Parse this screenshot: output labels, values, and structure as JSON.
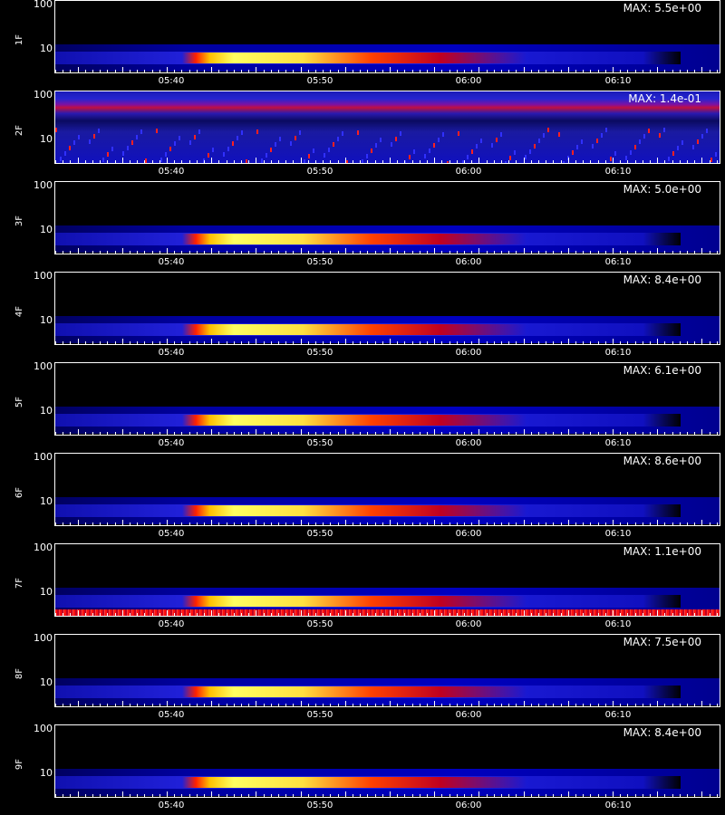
{
  "chart_data": {
    "type": "heatmap",
    "x_ticks": [
      "05:40",
      "05:50",
      "06:00",
      "06:10"
    ],
    "y_ticks": [
      "100",
      "10"
    ],
    "y_scale": "log",
    "panels": [
      {
        "ylabel": "1F",
        "max_label": "MAX: 5.5e+00",
        "kind": "burst"
      },
      {
        "ylabel": "2F",
        "max_label": "MAX: 1.4e-01",
        "kind": "noise"
      },
      {
        "ylabel": "3F",
        "max_label": "MAX: 5.0e+00",
        "kind": "burst"
      },
      {
        "ylabel": "4F",
        "max_label": "MAX: 8.4e+00",
        "kind": "burst"
      },
      {
        "ylabel": "5F",
        "max_label": "MAX: 6.1e+00",
        "kind": "burst"
      },
      {
        "ylabel": "6F",
        "max_label": "MAX: 8.6e+00",
        "kind": "burst"
      },
      {
        "ylabel": "7F",
        "max_label": "MAX: 1.1e+00",
        "kind": "burst-edge"
      },
      {
        "ylabel": "8F",
        "max_label": "MAX: 7.5e+00",
        "kind": "burst"
      },
      {
        "ylabel": "9F",
        "max_label": "MAX: 8.4e+00",
        "kind": "burst"
      }
    ],
    "colors": {
      "background": "#000000",
      "low": "#0000c8",
      "mid": "#ff0000",
      "high": "#ffff40",
      "axis": "#ffffff"
    }
  }
}
